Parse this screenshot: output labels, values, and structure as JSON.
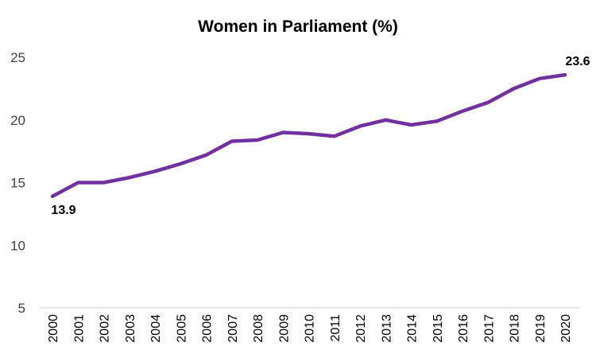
{
  "chart_data": {
    "type": "line",
    "title": "Women in Parliament (%)",
    "xlabel": "",
    "ylabel": "",
    "x": [
      "2000",
      "2001",
      "2002",
      "2003",
      "2004",
      "2005",
      "2006",
      "2007",
      "2008",
      "2009",
      "2010",
      "2011",
      "2012",
      "2013",
      "2014",
      "2015",
      "2016",
      "2017",
      "2018",
      "2019",
      "2020"
    ],
    "series": [
      {
        "values": [
          13.9,
          15.0,
          15.0,
          15.4,
          15.9,
          16.5,
          17.2,
          18.3,
          18.4,
          19.0,
          18.9,
          18.7,
          19.5,
          20.0,
          19.6,
          19.9,
          20.7,
          21.4,
          22.5,
          23.3,
          23.6
        ]
      }
    ],
    "ylim": [
      5,
      25
    ],
    "yticks": [
      "5",
      "10",
      "15",
      "20",
      "25"
    ],
    "data_labels": [
      {
        "index": 0,
        "text": "13.9"
      },
      {
        "index": 20,
        "text": "23.6"
      }
    ],
    "grid": false,
    "legend": "none",
    "colors": {
      "line": "#7030A0",
      "axis": "#D9D9D9"
    }
  }
}
